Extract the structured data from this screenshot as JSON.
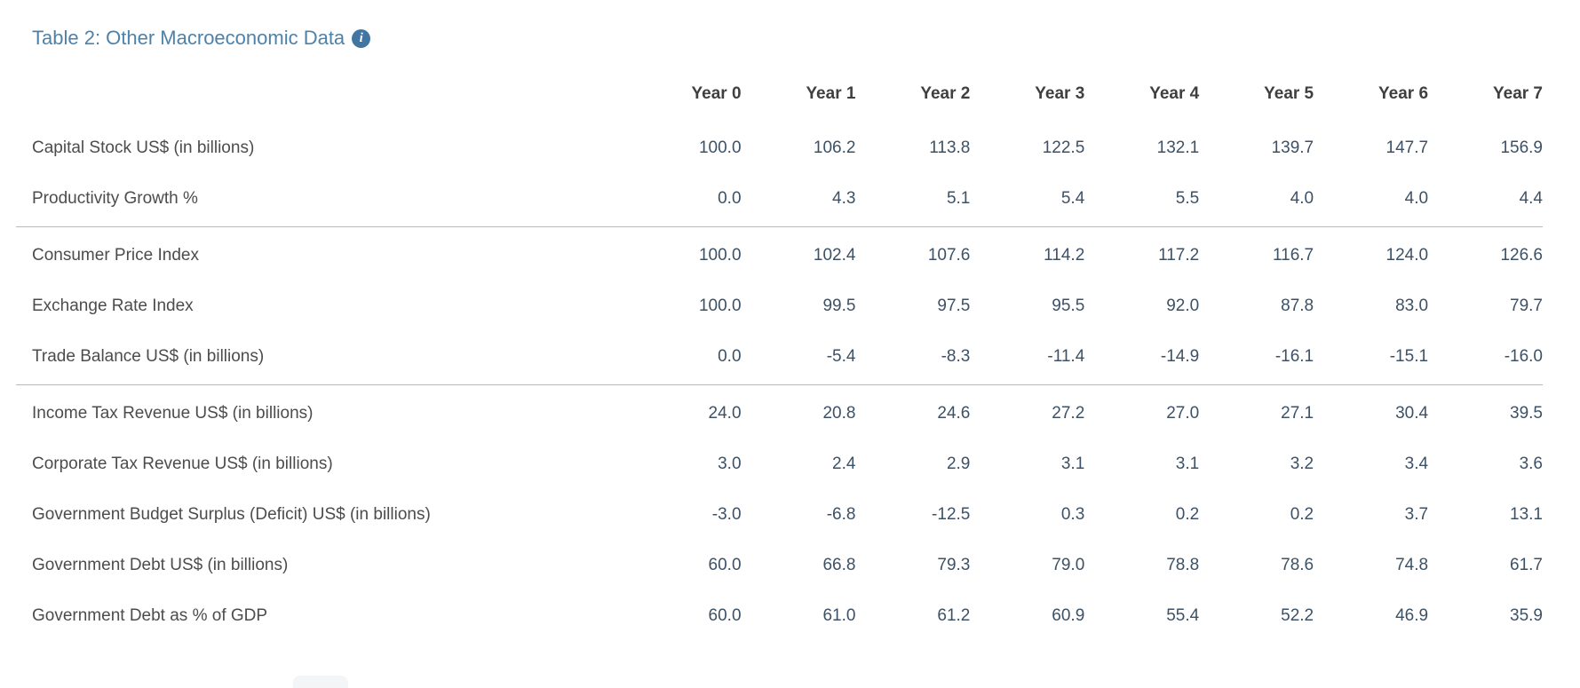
{
  "header": {
    "title": "Table 2: Other Macroeconomic Data",
    "info_glyph": "i"
  },
  "colors": {
    "title": "#4d82aa",
    "info_icon_bg": "#4176a3",
    "header_text": "#3f3f3f",
    "label_text": "#4c4c4c",
    "value_text": "#3d5166",
    "divider": "#b9b9b9",
    "background": "#ffffff"
  },
  "table": {
    "columns": [
      "Year 0",
      "Year 1",
      "Year 2",
      "Year 3",
      "Year 4",
      "Year 5",
      "Year 6",
      "Year 7"
    ],
    "groups": [
      {
        "rows": [
          {
            "label": "Capital Stock US$ (in billions)",
            "values": [
              "100.0",
              "106.2",
              "113.8",
              "122.5",
              "132.1",
              "139.7",
              "147.7",
              "156.9"
            ]
          },
          {
            "label": "Productivity Growth %",
            "values": [
              "0.0",
              "4.3",
              "5.1",
              "5.4",
              "5.5",
              "4.0",
              "4.0",
              "4.4"
            ]
          }
        ]
      },
      {
        "rows": [
          {
            "label": "Consumer Price Index",
            "values": [
              "100.0",
              "102.4",
              "107.6",
              "114.2",
              "117.2",
              "116.7",
              "124.0",
              "126.6"
            ]
          },
          {
            "label": "Exchange Rate Index",
            "values": [
              "100.0",
              "99.5",
              "97.5",
              "95.5",
              "92.0",
              "87.8",
              "83.0",
              "79.7"
            ]
          },
          {
            "label": "Trade Balance US$ (in billions)",
            "values": [
              "0.0",
              "-5.4",
              "-8.3",
              "-11.4",
              "-14.9",
              "-16.1",
              "-15.1",
              "-16.0"
            ]
          }
        ]
      },
      {
        "rows": [
          {
            "label": "Income Tax Revenue US$ (in billions)",
            "values": [
              "24.0",
              "20.8",
              "24.6",
              "27.2",
              "27.0",
              "27.1",
              "30.4",
              "39.5"
            ]
          },
          {
            "label": "Corporate Tax Revenue US$ (in billions)",
            "values": [
              "3.0",
              "2.4",
              "2.9",
              "3.1",
              "3.1",
              "3.2",
              "3.4",
              "3.6"
            ]
          },
          {
            "label": "Government Budget Surplus (Deficit) US$ (in billions)",
            "values": [
              "-3.0",
              "-6.8",
              "-12.5",
              "0.3",
              "0.2",
              "0.2",
              "3.7",
              "13.1"
            ]
          },
          {
            "label": "Government Debt US$ (in billions)",
            "values": [
              "60.0",
              "66.8",
              "79.3",
              "79.0",
              "78.8",
              "78.6",
              "74.8",
              "61.7"
            ]
          },
          {
            "label": "Government Debt as % of GDP",
            "values": [
              "60.0",
              "61.0",
              "61.2",
              "60.9",
              "55.4",
              "52.2",
              "46.9",
              "35.9"
            ]
          }
        ]
      }
    ]
  }
}
